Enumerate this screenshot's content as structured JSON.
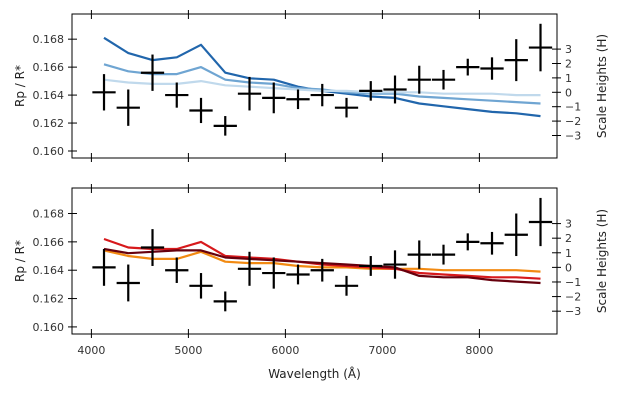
{
  "chart_data": [
    {
      "type": "line",
      "panel": "top",
      "ylabel": "Rp / R*",
      "ylabel_right": "Scale Heights (H)",
      "ylim": [
        0.1595,
        0.1698
      ],
      "yticks": [
        0.16,
        0.162,
        0.164,
        0.166,
        0.168
      ],
      "ytick_labels": [
        "0.160",
        "0.162",
        "0.164",
        "0.166",
        "0.168"
      ],
      "yticks_right": [
        -3,
        -2,
        -1,
        0,
        1,
        2,
        3
      ],
      "ytick_right_labels": [
        "−3",
        "−2",
        "−1",
        "0",
        "1",
        "2",
        "3"
      ],
      "xlim": [
        3800,
        8800
      ],
      "grid": false,
      "series": [
        {
          "style": "model",
          "color": "#2166ac",
          "x": [
            4130,
            4380,
            4630,
            4880,
            5130,
            5380,
            5630,
            5880,
            6130,
            6380,
            6630,
            6880,
            7130,
            7380,
            7630,
            7880,
            8130,
            8380,
            8630
          ],
          "y": [
            0.1681,
            0.167,
            0.1665,
            0.1667,
            0.1676,
            0.1656,
            0.1652,
            0.1651,
            0.1646,
            0.1643,
            0.1641,
            0.1639,
            0.1638,
            0.1634,
            0.1632,
            0.163,
            0.1628,
            0.1627,
            0.1625
          ]
        },
        {
          "style": "model",
          "color": "#6fa5d2",
          "x": [
            4130,
            4380,
            4630,
            4880,
            5130,
            5380,
            5630,
            5880,
            6130,
            6380,
            6630,
            6880,
            7130,
            7380,
            7630,
            7880,
            8130,
            8380,
            8630
          ],
          "y": [
            0.1662,
            0.1657,
            0.1655,
            0.1655,
            0.166,
            0.1651,
            0.1649,
            0.1648,
            0.1645,
            0.1644,
            0.1642,
            0.1641,
            0.1641,
            0.1639,
            0.1638,
            0.1637,
            0.1636,
            0.1635,
            0.1634
          ]
        },
        {
          "style": "model",
          "color": "#c0d9ec",
          "x": [
            4130,
            4380,
            4630,
            4880,
            5130,
            5380,
            5630,
            5880,
            6130,
            6380,
            6630,
            6880,
            7130,
            7380,
            7630,
            7880,
            8130,
            8380,
            8630
          ],
          "y": [
            0.1651,
            0.1649,
            0.1648,
            0.1648,
            0.165,
            0.1647,
            0.1646,
            0.1645,
            0.1644,
            0.1643,
            0.1643,
            0.1642,
            0.1642,
            0.1642,
            0.1641,
            0.1641,
            0.1641,
            0.164,
            0.164
          ]
        },
        {
          "style": "errorbar",
          "color": "#000000",
          "x": [
            4130,
            4380,
            4630,
            4880,
            5130,
            5380,
            5630,
            5880,
            6130,
            6380,
            6630,
            6880,
            7130,
            7380,
            7630,
            7880,
            8130,
            8380,
            8630
          ],
          "y": [
            0.1642,
            0.1631,
            0.1656,
            0.164,
            0.1629,
            0.1618,
            0.1641,
            0.1638,
            0.1637,
            0.164,
            0.1631,
            0.1643,
            0.1644,
            0.1651,
            0.1651,
            0.166,
            0.1659,
            0.1665,
            0.1674
          ],
          "xerr": 120,
          "yerr": [
            0.0013,
            0.0013,
            0.0013,
            0.0009,
            0.0009,
            0.0007,
            0.0012,
            0.0011,
            0.0007,
            0.0008,
            0.0007,
            0.0007,
            0.001,
            0.001,
            0.0007,
            0.0006,
            0.0008,
            0.0015,
            0.0017
          ]
        }
      ]
    },
    {
      "type": "line",
      "panel": "bottom",
      "ylabel": "Rp / R*",
      "ylabel_right": "Scale Heights (H)",
      "xlabel": "Wavelength (Å)",
      "ylim": [
        0.1595,
        0.1698
      ],
      "yticks": [
        0.16,
        0.162,
        0.164,
        0.166,
        0.168
      ],
      "ytick_labels": [
        "0.160",
        "0.162",
        "0.164",
        "0.166",
        "0.168"
      ],
      "yticks_right": [
        -3,
        -2,
        -1,
        0,
        1,
        2,
        3
      ],
      "ytick_right_labels": [
        "−3",
        "−2",
        "−1",
        "0",
        "1",
        "2",
        "3"
      ],
      "xlim": [
        3800,
        8800
      ],
      "xticks": [
        4000,
        5000,
        6000,
        7000,
        8000
      ],
      "xtick_labels": [
        "4000",
        "5000",
        "6000",
        "7000",
        "8000"
      ],
      "grid": false,
      "series": [
        {
          "style": "model",
          "color": "#f28a12",
          "x": [
            4130,
            4380,
            4630,
            4880,
            5130,
            5380,
            5630,
            5880,
            6130,
            6380,
            6630,
            6880,
            7130,
            7380,
            7630,
            7880,
            8130,
            8380,
            8630
          ],
          "y": [
            0.1654,
            0.165,
            0.1648,
            0.1648,
            0.1653,
            0.1646,
            0.1645,
            0.1645,
            0.1643,
            0.1642,
            0.1642,
            0.1641,
            0.1641,
            0.1641,
            0.164,
            0.164,
            0.164,
            0.164,
            0.1639
          ]
        },
        {
          "style": "model",
          "color": "#d7191c",
          "x": [
            4130,
            4380,
            4630,
            4880,
            5130,
            5380,
            5630,
            5880,
            6130,
            6380,
            6630,
            6880,
            7130,
            7380,
            7630,
            7880,
            8130,
            8380,
            8630
          ],
          "y": [
            0.1662,
            0.1656,
            0.1655,
            0.1655,
            0.166,
            0.165,
            0.1649,
            0.1648,
            0.1646,
            0.1644,
            0.1643,
            0.1642,
            0.1641,
            0.1638,
            0.1637,
            0.1636,
            0.1635,
            0.1635,
            0.1634
          ]
        },
        {
          "style": "model",
          "color": "#67000d",
          "x": [
            4130,
            4380,
            4630,
            4880,
            5130,
            5380,
            5630,
            5880,
            6130,
            6380,
            6630,
            6880,
            7130,
            7380,
            7630,
            7880,
            8130,
            8380,
            8630
          ],
          "y": [
            0.1655,
            0.1652,
            0.1653,
            0.1654,
            0.1654,
            0.1649,
            0.1648,
            0.1647,
            0.1646,
            0.1645,
            0.1644,
            0.1643,
            0.1642,
            0.1636,
            0.1635,
            0.1635,
            0.1633,
            0.1632,
            0.1631
          ]
        },
        {
          "style": "errorbar",
          "color": "#000000",
          "x": [
            4130,
            4380,
            4630,
            4880,
            5130,
            5380,
            5630,
            5880,
            6130,
            6380,
            6630,
            6880,
            7130,
            7380,
            7630,
            7880,
            8130,
            8380,
            8630
          ],
          "y": [
            0.1642,
            0.1631,
            0.1656,
            0.164,
            0.1629,
            0.1618,
            0.1641,
            0.1638,
            0.1637,
            0.164,
            0.1629,
            0.1643,
            0.1644,
            0.1651,
            0.1651,
            0.166,
            0.1659,
            0.1665,
            0.1674
          ],
          "xerr": 120,
          "yerr": [
            0.0013,
            0.0013,
            0.0013,
            0.0009,
            0.0009,
            0.0007,
            0.0012,
            0.0011,
            0.0007,
            0.0008,
            0.0007,
            0.0007,
            0.001,
            0.001,
            0.0007,
            0.0006,
            0.0008,
            0.0015,
            0.0017
          ]
        }
      ]
    }
  ]
}
